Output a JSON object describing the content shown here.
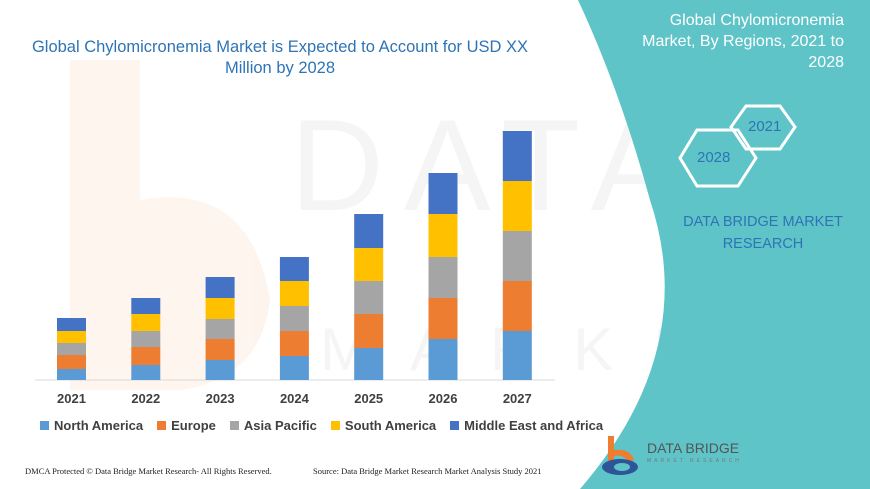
{
  "title": "Global Chylomicronemia Market is Expected to Account for USD XX Million by 2028",
  "side_panel": {
    "title": "Global Chylomicronemia Market, By Regions, 2021 to 2028",
    "hex_a": "2021",
    "hex_b": "2028",
    "company": "DATA BRIDGE MARKET RESEARCH",
    "panel_color": "#5ec4c8"
  },
  "logo": {
    "name": "DATA BRIDGE",
    "tagline": "MARKET RESEARCH"
  },
  "footer": {
    "left": "DMCA Protected © Data Bridge Market Research- All Rights Reserved.",
    "right": "Source: Data Bridge Market Research Market Analysis Study 2021"
  },
  "chart_data": {
    "type": "bar",
    "stacked": true,
    "title": "Global Chylomicronemia Market is Expected to Account for USD XX Million by 2028",
    "xlabel": "",
    "ylabel": "",
    "grid": false,
    "legend_position": "bottom",
    "categories": [
      "2021",
      "2022",
      "2023",
      "2024",
      "2025",
      "2026",
      "2027"
    ],
    "series": [
      {
        "name": "North America",
        "color": "#5b9bd5",
        "values": [
          11,
          15,
          20,
          24,
          32,
          41,
          49
        ]
      },
      {
        "name": "Europe",
        "color": "#ed7d31",
        "values": [
          14,
          18,
          21,
          25,
          34,
          41,
          50
        ]
      },
      {
        "name": "Asia Pacific",
        "color": "#a5a5a5",
        "values": [
          12,
          16,
          20,
          25,
          33,
          41,
          50
        ]
      },
      {
        "name": "South America",
        "color": "#ffc000",
        "values": [
          12,
          17,
          21,
          25,
          33,
          43,
          50
        ]
      },
      {
        "name": "Middle East and Africa",
        "color": "#4472c4",
        "values": [
          13,
          16,
          21,
          24,
          34,
          41,
          50
        ]
      }
    ]
  }
}
